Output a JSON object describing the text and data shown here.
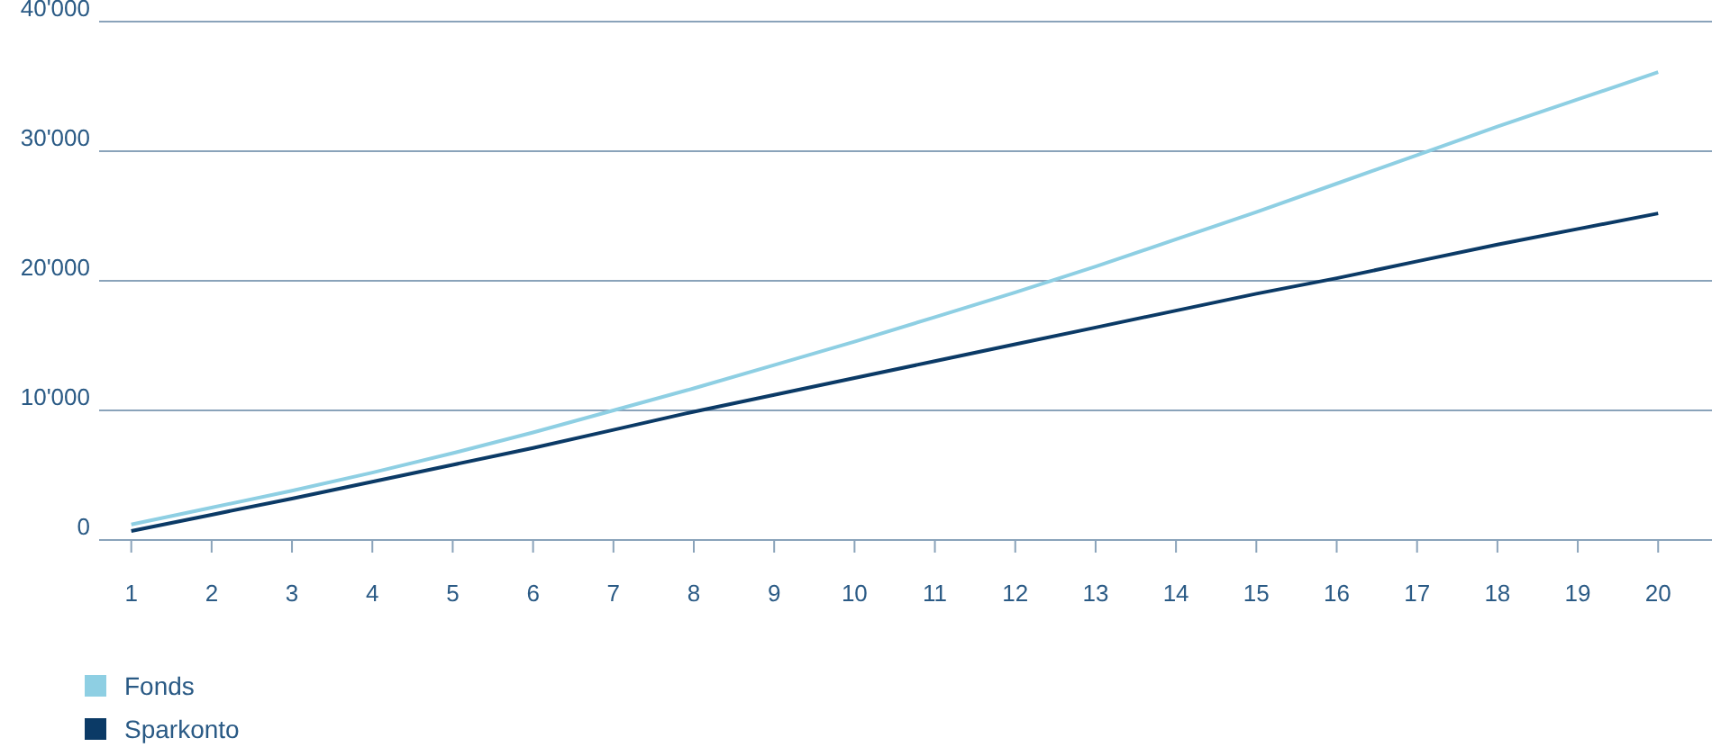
{
  "chart_data": {
    "type": "line",
    "x": [
      1,
      2,
      3,
      4,
      5,
      6,
      7,
      8,
      9,
      10,
      11,
      12,
      13,
      14,
      15,
      16,
      17,
      18,
      19,
      20
    ],
    "series": [
      {
        "name": "Fonds",
        "color": "#8ecfe3",
        "values": [
          1200,
          2500,
          3800,
          5200,
          6700,
          8300,
          10000,
          11700,
          13500,
          15300,
          17200,
          19100,
          21100,
          23200,
          25300,
          27500,
          29700,
          31900,
          34000,
          36100
        ]
      },
      {
        "name": "Sparkonto",
        "color": "#0b3a66",
        "values": [
          700,
          1950,
          3200,
          4500,
          5800,
          7100,
          8500,
          9900,
          11200,
          12500,
          13800,
          15100,
          16400,
          17700,
          19000,
          20200,
          21500,
          22800,
          24000,
          25200
        ]
      }
    ],
    "xlim": [
      0.6,
      20.67
    ],
    "xticks": [
      1,
      2,
      3,
      4,
      5,
      6,
      7,
      8,
      9,
      10,
      11,
      12,
      13,
      14,
      15,
      16,
      17,
      18,
      19,
      20
    ],
    "ylim": [
      0,
      40000
    ],
    "yticks": [
      0,
      {
        "value": 10000,
        "label": "10'000"
      },
      {
        "value": 20000,
        "label": "20'000"
      },
      {
        "value": 30000,
        "label": "30'000"
      },
      {
        "value": 40000,
        "label": "40'000"
      }
    ],
    "grid": "y",
    "legend": "bottom left",
    "marker": "none",
    "line_style": "solid"
  }
}
